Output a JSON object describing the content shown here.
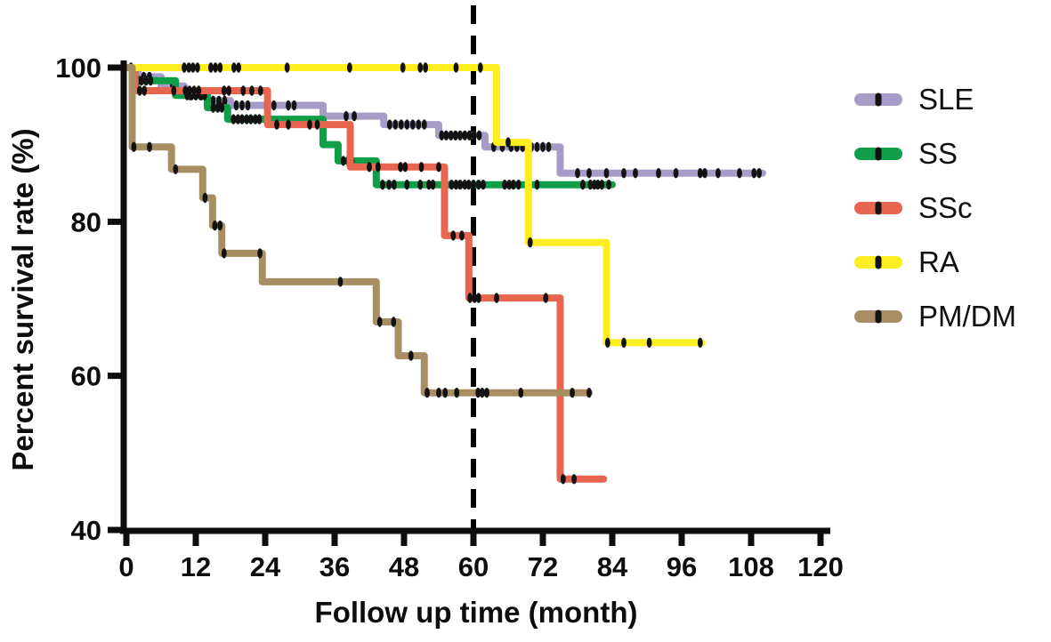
{
  "figure": {
    "background": "#ffffff",
    "axis_color": "#0d0d0d"
  },
  "chart_data": {
    "type": "line",
    "subtype": "kaplan-meier-step-survival",
    "title": "",
    "xlabel": "Follow up time (month)",
    "ylabel": "Percent survival rate (%)",
    "xlim": [
      0,
      120
    ],
    "ylim": [
      40,
      100
    ],
    "xticks": [
      0,
      12,
      24,
      36,
      48,
      60,
      72,
      84,
      96,
      108,
      120
    ],
    "yticks": [
      100,
      80,
      60,
      40
    ],
    "grid": false,
    "legend_position": "right",
    "vline": {
      "x": 60,
      "style": "dashed",
      "color": "#000000"
    },
    "series": [
      {
        "name": "SLE",
        "color": "#a79bc8",
        "start": [
          0,
          100
        ],
        "steps": [
          [
            2,
            98.8
          ],
          [
            6,
            97.6
          ],
          [
            10,
            96.4
          ],
          [
            14,
            95.7
          ],
          [
            18,
            95.1
          ],
          [
            34,
            93.7
          ],
          [
            44.5,
            92.6
          ],
          [
            54,
            91.2
          ],
          [
            62,
            89.7
          ],
          [
            75,
            86.3
          ]
        ],
        "end_month": 110,
        "censor_months": [
          3,
          4,
          8,
          11,
          12,
          13,
          15,
          16,
          17,
          19,
          20,
          21,
          24.5,
          25.5,
          28,
          29,
          38,
          39.4,
          45.5,
          46.5,
          47.5,
          48.5,
          49.5,
          50.5,
          51.5,
          54.5,
          55.3,
          56.1,
          56.9,
          57.7,
          58.5,
          59.3,
          60.1,
          61,
          63.5,
          65,
          66.5,
          67.5,
          68.5,
          70,
          71,
          72,
          73,
          78,
          80,
          83,
          86,
          88,
          92,
          95,
          99.2,
          100,
          102.3,
          106,
          108.5,
          109.4
        ]
      },
      {
        "name": "SS",
        "color": "#119e49",
        "start": [
          0,
          100
        ],
        "steps": [
          [
            1,
            98.3
          ],
          [
            8.5,
            96.4
          ],
          [
            14,
            94.8
          ],
          [
            17.5,
            93.3
          ],
          [
            34,
            90
          ],
          [
            36.6,
            87.9
          ],
          [
            43.2,
            84.8
          ]
        ],
        "end_month": 84,
        "censor_months": [
          2,
          2.6,
          3.4,
          4.2,
          10.5,
          11.3,
          12,
          12.8,
          13.5,
          15,
          15.8,
          16.5,
          18.5,
          19.3,
          20,
          20.8,
          21.5,
          22.3,
          23,
          37.5,
          38.3,
          39,
          44.3,
          45.4,
          46.3,
          48.5,
          50.8,
          52.3,
          53,
          55.1,
          56.2,
          57,
          57.7,
          58.5,
          59.2,
          60,
          60.9,
          61.7,
          65.4,
          66.2,
          66.9,
          67.8,
          71,
          78.9,
          80.2,
          80.9,
          81.5,
          82.2,
          83.4
        ]
      },
      {
        "name": "SSc",
        "color": "#e8654f",
        "start": [
          0,
          100
        ],
        "steps": [
          [
            1.5,
            97
          ],
          [
            24.4,
            92.6
          ],
          [
            38.7,
            87.1
          ],
          [
            55,
            78.2
          ],
          [
            59.2,
            70.1
          ],
          [
            75,
            46.6
          ]
        ],
        "end_month": 82.5,
        "censor_months": [
          2.3,
          3.1,
          8.2,
          10.2,
          10.9,
          11.7,
          12.5,
          16.9,
          17.7,
          20.2,
          21.7,
          23.2,
          26,
          28,
          31.7,
          33,
          42,
          43.5,
          47.4,
          48.2,
          51,
          54,
          56.5,
          58,
          59.4,
          60.2,
          60.9,
          64,
          72.5,
          75.5,
          77.4
        ]
      },
      {
        "name": "RA",
        "color": "#fcee21",
        "start": [
          0,
          100
        ],
        "steps": [
          [
            64,
            90.3
          ],
          [
            69.5,
            77.3
          ],
          [
            83,
            64.3
          ]
        ],
        "end_month": 99.5,
        "censor_months": [
          0.8,
          10,
          10.8,
          11.5,
          12.3,
          14.6,
          15.4,
          16.2,
          18.6,
          19.4,
          27.8,
          38.6,
          47.8,
          50.8,
          51.7,
          57,
          61.2,
          66,
          69.8,
          83.2,
          86,
          90.4,
          99.2
        ]
      },
      {
        "name": "PM/DM",
        "color": "#a78f63",
        "start": [
          0,
          100
        ],
        "steps": [
          [
            1,
            89.7
          ],
          [
            7.8,
            86.8
          ],
          [
            13.2,
            83.1
          ],
          [
            14.9,
            79.5
          ],
          [
            16.5,
            75.9
          ],
          [
            23.5,
            72.2
          ],
          [
            43.2,
            67
          ],
          [
            47,
            62.6
          ],
          [
            51.5,
            57.8
          ]
        ],
        "end_month": 80,
        "censor_months": [
          1.3,
          4,
          8.5,
          13.6,
          15.3,
          16.2,
          16.9,
          23.1,
          37,
          43.8,
          46.2,
          49.2,
          52,
          54,
          55.1,
          57.1,
          60.8,
          61.5,
          62.3,
          68.2,
          77.1,
          80
        ]
      }
    ]
  }
}
